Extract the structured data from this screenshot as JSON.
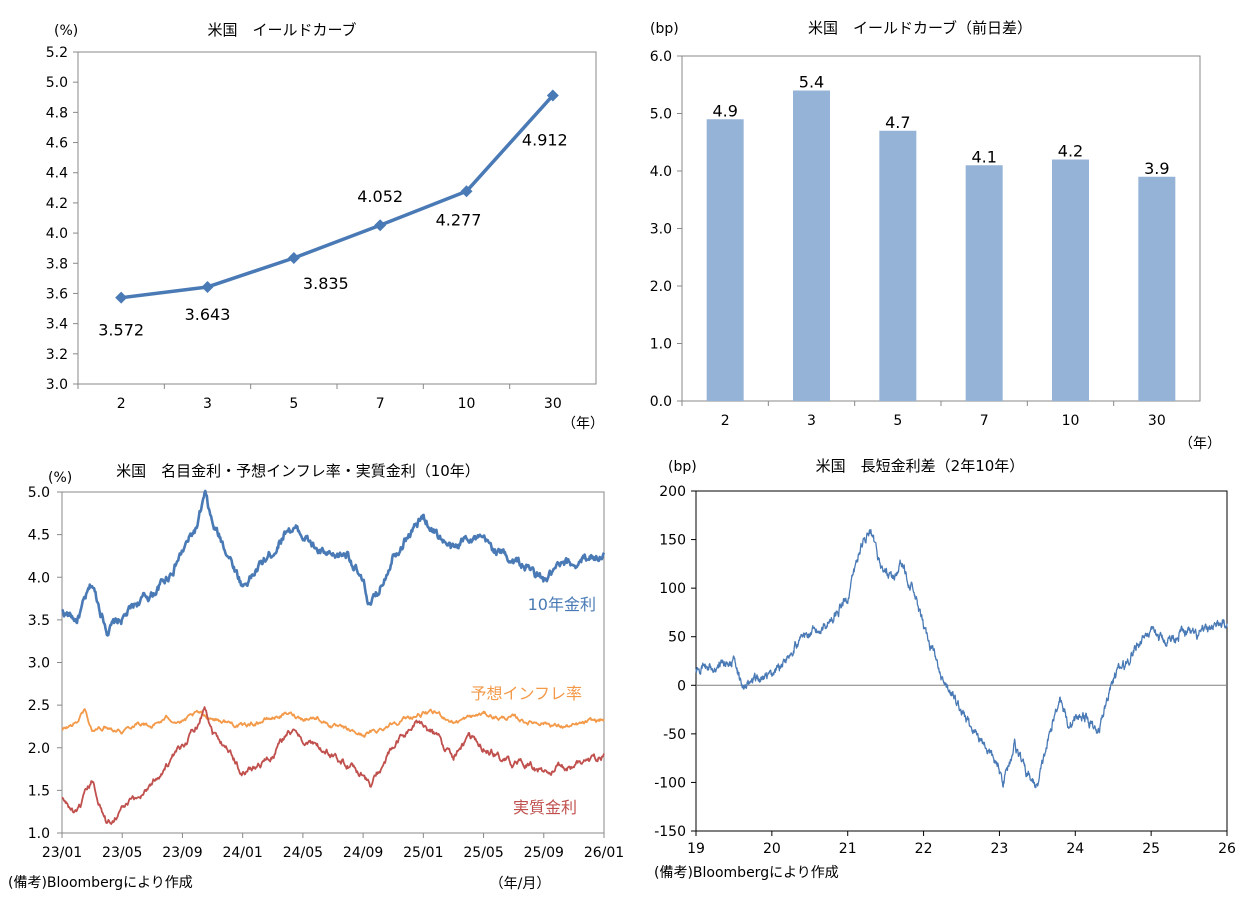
{
  "chart_data": [
    {
      "id": "yield_curve",
      "type": "line",
      "title": "米国　イールドカーブ",
      "unit_label": "(%)",
      "x_unit_label": "（年）",
      "categories": [
        "2",
        "3",
        "5",
        "7",
        "10",
        "30"
      ],
      "values": [
        3.572,
        3.643,
        3.835,
        4.052,
        4.277,
        4.912
      ],
      "value_labels": [
        "3.572",
        "3.643",
        "3.835",
        "4.052",
        "4.277",
        "4.912"
      ],
      "ylim": [
        3.0,
        5.2
      ],
      "yticks": [
        "3.0",
        "3.2",
        "3.4",
        "3.6",
        "3.8",
        "4.0",
        "4.2",
        "4.4",
        "4.6",
        "4.8",
        "5.0",
        "5.2"
      ],
      "color": "#4a7ab5"
    },
    {
      "id": "yield_change",
      "type": "bar",
      "title": "米国　イールドカーブ（前日差）",
      "unit_label": "(bp)",
      "x_unit_label": "（年）",
      "categories": [
        "2",
        "3",
        "5",
        "7",
        "10",
        "30"
      ],
      "values": [
        4.9,
        5.4,
        4.7,
        4.1,
        4.2,
        3.9
      ],
      "value_labels": [
        "4.9",
        "5.4",
        "4.7",
        "4.1",
        "4.2",
        "3.9"
      ],
      "ylim": [
        0.0,
        6.0
      ],
      "yticks": [
        "0.0",
        "1.0",
        "2.0",
        "3.0",
        "4.0",
        "5.0",
        "6.0"
      ],
      "color": "#95b3d7"
    },
    {
      "id": "real_rates",
      "type": "line",
      "title": "米国　名目金利・予想インフレ率・実質金利（10年）",
      "unit_label": "(%)",
      "x_unit_label": "（年/月）",
      "xticks": [
        "23/01",
        "23/05",
        "23/09",
        "24/01",
        "24/05",
        "24/09",
        "25/01",
        "25/05",
        "25/09",
        "26/01"
      ],
      "ylim": [
        1.0,
        5.0
      ],
      "yticks": [
        "1.0",
        "1.5",
        "2.0",
        "2.5",
        "3.0",
        "3.5",
        "4.0",
        "4.5",
        "5.0"
      ],
      "series": [
        {
          "name": "10年金利",
          "color": "#4a7ab5",
          "anchors": [
            [
              0,
              3.6
            ],
            [
              1,
              3.5
            ],
            [
              2,
              3.9
            ],
            [
              3,
              3.4
            ],
            [
              4,
              3.5
            ],
            [
              5,
              3.7
            ],
            [
              6,
              3.8
            ],
            [
              7,
              4.0
            ],
            [
              8,
              4.3
            ],
            [
              9,
              4.6
            ],
            [
              9.5,
              4.95
            ],
            [
              10,
              4.6
            ],
            [
              11,
              4.3
            ],
            [
              12,
              3.9
            ],
            [
              13,
              4.1
            ],
            [
              14,
              4.3
            ],
            [
              15,
              4.6
            ],
            [
              16,
              4.5
            ],
            [
              17,
              4.3
            ],
            [
              18,
              4.2
            ],
            [
              19,
              4.3
            ],
            [
              20,
              3.9
            ],
            [
              20.5,
              3.65
            ],
            [
              21,
              3.8
            ],
            [
              22,
              4.3
            ],
            [
              23,
              4.5
            ],
            [
              24,
              4.7
            ],
            [
              25,
              4.5
            ],
            [
              26,
              4.3
            ],
            [
              27,
              4.5
            ],
            [
              28,
              4.4
            ],
            [
              29,
              4.3
            ],
            [
              30,
              4.2
            ],
            [
              31,
              4.1
            ],
            [
              32,
              3.95
            ],
            [
              33,
              4.1
            ],
            [
              34,
              4.15
            ],
            [
              35,
              4.25
            ],
            [
              36,
              4.27
            ]
          ]
        },
        {
          "name": "予想インフレ率",
          "color": "#f39a4a",
          "anchors": [
            [
              0,
              2.2
            ],
            [
              1,
              2.3
            ],
            [
              1.5,
              2.45
            ],
            [
              2,
              2.2
            ],
            [
              3,
              2.25
            ],
            [
              4,
              2.2
            ],
            [
              5,
              2.3
            ],
            [
              6,
              2.25
            ],
            [
              7,
              2.35
            ],
            [
              8,
              2.3
            ],
            [
              9,
              2.4
            ],
            [
              10,
              2.35
            ],
            [
              11,
              2.3
            ],
            [
              12,
              2.25
            ],
            [
              13,
              2.3
            ],
            [
              14,
              2.35
            ],
            [
              15,
              2.4
            ],
            [
              16,
              2.35
            ],
            [
              17,
              2.35
            ],
            [
              18,
              2.25
            ],
            [
              19,
              2.2
            ],
            [
              20,
              2.15
            ],
            [
              21,
              2.2
            ],
            [
              22,
              2.3
            ],
            [
              23,
              2.35
            ],
            [
              24,
              2.4
            ],
            [
              25,
              2.4
            ],
            [
              26,
              2.3
            ],
            [
              27,
              2.35
            ],
            [
              28,
              2.4
            ],
            [
              29,
              2.35
            ],
            [
              30,
              2.35
            ],
            [
              31,
              2.3
            ],
            [
              32,
              2.3
            ],
            [
              33,
              2.25
            ],
            [
              34,
              2.25
            ],
            [
              35,
              2.3
            ],
            [
              36,
              2.33
            ]
          ]
        },
        {
          "name": "実質金利",
          "color": "#c0504d",
          "anchors": [
            [
              0,
              1.4
            ],
            [
              1,
              1.2
            ],
            [
              2,
              1.6
            ],
            [
              3,
              1.1
            ],
            [
              4,
              1.3
            ],
            [
              5,
              1.4
            ],
            [
              6,
              1.6
            ],
            [
              7,
              1.8
            ],
            [
              8,
              2.0
            ],
            [
              9,
              2.3
            ],
            [
              9.5,
              2.5
            ],
            [
              10,
              2.2
            ],
            [
              11,
              2.0
            ],
            [
              12,
              1.7
            ],
            [
              13,
              1.8
            ],
            [
              14,
              1.9
            ],
            [
              15,
              2.2
            ],
            [
              16,
              2.1
            ],
            [
              17,
              2.0
            ],
            [
              18,
              1.9
            ],
            [
              19,
              1.8
            ],
            [
              20,
              1.7
            ],
            [
              20.5,
              1.55
            ],
            [
              21,
              1.7
            ],
            [
              22,
              2.0
            ],
            [
              23,
              2.2
            ],
            [
              24,
              2.3
            ],
            [
              25,
              2.1
            ],
            [
              26,
              1.9
            ],
            [
              27,
              2.1
            ],
            [
              28,
              2.0
            ],
            [
              29,
              1.9
            ],
            [
              30,
              1.8
            ],
            [
              31,
              1.8
            ],
            [
              32,
              1.7
            ],
            [
              33,
              1.75
            ],
            [
              34,
              1.8
            ],
            [
              35,
              1.85
            ],
            [
              36,
              1.92
            ]
          ]
        }
      ]
    },
    {
      "id": "spread_2s10s",
      "type": "line",
      "title": "米国　長短金利差（2年10年）",
      "unit_label": "(bp)",
      "xticks": [
        "19",
        "20",
        "21",
        "22",
        "23",
        "24",
        "25",
        "26"
      ],
      "ylim": [
        -150,
        200
      ],
      "yticks": [
        "-150",
        "-100",
        "-50",
        "0",
        "50",
        "100",
        "150",
        "200"
      ],
      "series": [
        {
          "name": "2年10年",
          "color": "#4a7ab5",
          "anchors": [
            [
              0,
              15
            ],
            [
              0.3,
              20
            ],
            [
              0.5,
              25
            ],
            [
              0.6,
              0
            ],
            [
              0.8,
              5
            ],
            [
              1,
              10
            ],
            [
              1.2,
              30
            ],
            [
              1.4,
              50
            ],
            [
              1.6,
              55
            ],
            [
              1.8,
              70
            ],
            [
              2.0,
              90
            ],
            [
              2.1,
              120
            ],
            [
              2.2,
              150
            ],
            [
              2.3,
              155
            ],
            [
              2.45,
              120
            ],
            [
              2.6,
              110
            ],
            [
              2.7,
              125
            ],
            [
              2.85,
              100
            ],
            [
              3.0,
              60
            ],
            [
              3.15,
              30
            ],
            [
              3.25,
              0
            ],
            [
              3.35,
              -5
            ],
            [
              3.45,
              -20
            ],
            [
              3.6,
              -40
            ],
            [
              3.8,
              -60
            ],
            [
              3.95,
              -80
            ],
            [
              4.05,
              -100
            ],
            [
              4.2,
              -60
            ],
            [
              4.35,
              -90
            ],
            [
              4.5,
              -105
            ],
            [
              4.6,
              -70
            ],
            [
              4.7,
              -40
            ],
            [
              4.8,
              -10
            ],
            [
              4.9,
              -40
            ],
            [
              5.1,
              -30
            ],
            [
              5.3,
              -50
            ],
            [
              5.45,
              -5
            ],
            [
              5.55,
              15
            ],
            [
              5.65,
              20
            ],
            [
              5.8,
              40
            ],
            [
              5.95,
              55
            ],
            [
              6.2,
              45
            ],
            [
              6.4,
              55
            ],
            [
              6.6,
              50
            ],
            [
              6.8,
              60
            ],
            [
              7.0,
              65
            ]
          ]
        }
      ]
    }
  ],
  "series_labels": {
    "nominal": "10年金利",
    "inflation": "予想インフレ率",
    "real": "実質金利"
  },
  "notes": {
    "left": "(備考)Bloombergにより作成",
    "right": "(備考)Bloombergにより作成"
  }
}
